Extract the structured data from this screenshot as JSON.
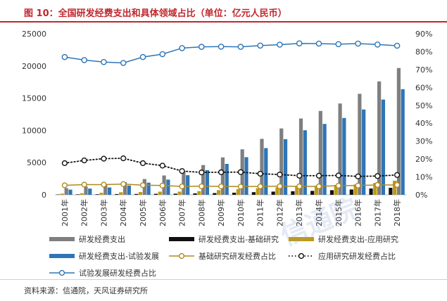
{
  "header": {
    "title": "图 10：全国研发经费支出和具体领域占比（单位：亿元人民币）"
  },
  "source": "资料来源：信通院，天风证券研究所",
  "watermark": "信通院",
  "chart_data": {
    "type": "bar",
    "categories": [
      "2001年",
      "2002年",
      "2003年",
      "2004年",
      "2005年",
      "2006年",
      "2007年",
      "2008年",
      "2009年",
      "2010年",
      "2011年",
      "2012年",
      "2013年",
      "2014年",
      "2015年",
      "2016年",
      "2017年",
      "2018年"
    ],
    "y_left": {
      "ylim": [
        0,
        25000
      ],
      "ticks": [
        0,
        5000,
        10000,
        15000,
        20000,
        25000
      ]
    },
    "y_right": {
      "ylim": [
        0,
        90
      ],
      "ticks": [
        "0%",
        "10%",
        "20%",
        "30%",
        "40%",
        "50%",
        "60%",
        "70%",
        "80%",
        "90%"
      ]
    },
    "grid": false,
    "legend_position": "bottom",
    "series": [
      {
        "name": "研发经费支出",
        "kind": "bar",
        "axis": "left",
        "color": "#7f7f7f",
        "values": [
          1043,
          1288,
          1540,
          1966,
          2450,
          3003,
          3710,
          4616,
          5802,
          7063,
          8687,
          10298,
          11847,
          13016,
          14170,
          15677,
          17606,
          19678
        ]
      },
      {
        "name": "研发经费支出-基础研究",
        "kind": "bar",
        "axis": "left",
        "color": "#111111",
        "values": [
          55,
          73,
          87,
          117,
          131,
          155,
          174,
          220,
          270,
          325,
          412,
          499,
          555,
          614,
          716,
          823,
          976,
          1090
        ]
      },
      {
        "name": "研发经费支出-应用研究",
        "kind": "bar",
        "axis": "left",
        "color": "#c09a16",
        "values": [
          185,
          246,
          311,
          400,
          433,
          489,
          493,
          575,
          730,
          894,
          1028,
          1163,
          1269,
          1398,
          1529,
          1610,
          1849,
          2191
        ]
      },
      {
        "name": "研发经费支出-试验发展",
        "kind": "bar",
        "axis": "left",
        "color": "#2e75b6",
        "values": [
          803,
          969,
          1142,
          1449,
          1886,
          2359,
          3043,
          3821,
          4802,
          5844,
          7247,
          8636,
          10023,
          11004,
          11925,
          13244,
          14781,
          16397
        ]
      },
      {
        "name": "基础研究研发经费占比",
        "kind": "line",
        "axis": "right",
        "color": "#b08a1e",
        "values": [
          5.3,
          5.7,
          5.7,
          6.0,
          5.4,
          5.2,
          4.7,
          4.8,
          4.7,
          4.6,
          4.7,
          4.8,
          4.7,
          4.7,
          5.1,
          5.2,
          5.5,
          5.5
        ]
      },
      {
        "name": "应用研究研发经费占比",
        "kind": "line",
        "axis": "right",
        "color": "#111111",
        "values": [
          17.7,
          19.2,
          20.2,
          20.4,
          17.7,
          16.3,
          13.3,
          12.5,
          12.6,
          12.7,
          11.8,
          11.3,
          10.7,
          10.7,
          10.8,
          10.3,
          10.5,
          11.1
        ]
      },
      {
        "name": "试验发展研发经费占比",
        "kind": "line",
        "axis": "right",
        "color": "#2e75b6",
        "values": [
          77.0,
          75.3,
          74.2,
          73.7,
          77.0,
          78.6,
          82.0,
          82.7,
          82.8,
          82.7,
          83.4,
          83.9,
          84.6,
          84.5,
          84.2,
          84.5,
          84.0,
          83.3
        ]
      }
    ]
  }
}
